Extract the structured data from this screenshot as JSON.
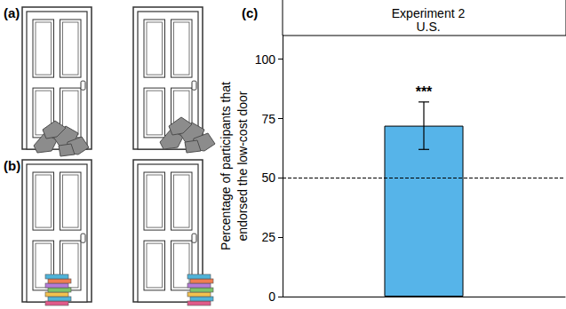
{
  "panel_labels": [
    "(a)",
    "(b)",
    "(c)"
  ],
  "chart_data": {
    "type": "bar",
    "title": "Experiment 2",
    "subtitle": "U.S.",
    "y_label": "Percentage of participants that\nendorsed the low-cost door",
    "categories": [
      null
    ],
    "values": [
      72
    ],
    "color": "#56b4e9",
    "error_bars": [
      [
        62,
        82
      ]
    ],
    "annotations": [
      "***"
    ],
    "reference_line": {
      "value": 50,
      "line_style": "dashed"
    },
    "ylim": [
      0,
      110
    ],
    "yticks": [
      0,
      25,
      50,
      75,
      100
    ],
    "grid": false
  }
}
